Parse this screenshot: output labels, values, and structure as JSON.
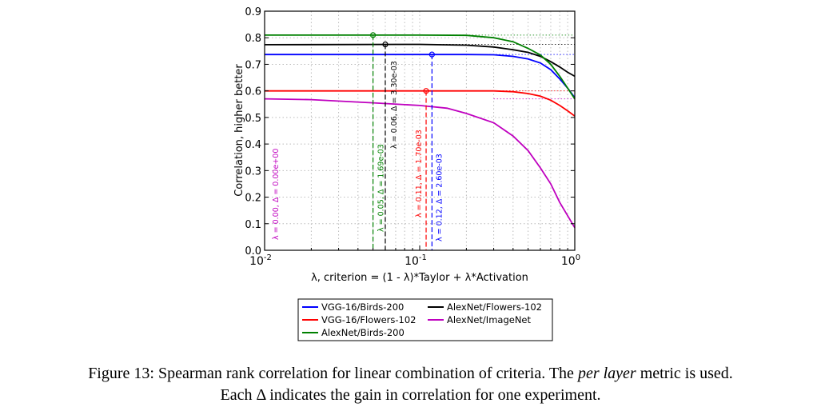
{
  "chart_data": {
    "type": "line",
    "xlabel": "λ, criterion = (1 - λ)*Taylor + λ*Activation",
    "ylabel": "Correlation, higher better",
    "xscale": "log",
    "xlim": [
      0.01,
      1
    ],
    "ylim": [
      0.0,
      0.9
    ],
    "xticks": [
      {
        "v": 0.01,
        "base": "10",
        "exp": "-2"
      },
      {
        "v": 0.1,
        "base": "10",
        "exp": "-1"
      },
      {
        "v": 1,
        "base": "10",
        "exp": "0"
      }
    ],
    "yticks": [
      "0.0",
      "0.1",
      "0.2",
      "0.3",
      "0.4",
      "0.5",
      "0.6",
      "0.7",
      "0.8",
      "0.9"
    ],
    "grid": true,
    "legend_placement": "below",
    "series": [
      {
        "name": "VGG-16/Birds-200",
        "color": "#0000ff",
        "x": [
          0.01,
          0.1,
          0.2,
          0.3,
          0.4,
          0.5,
          0.6,
          0.7,
          0.8,
          0.9,
          1.0
        ],
        "y": [
          0.737,
          0.737,
          0.737,
          0.736,
          0.73,
          0.72,
          0.705,
          0.68,
          0.645,
          0.61,
          0.575
        ],
        "best": {
          "x": 0.12,
          "y": 0.737
        },
        "annotation": "λ = 0.12, Δ = 2.60e-03"
      },
      {
        "name": "AlexNet/Flowers-102",
        "color": "#000000",
        "x": [
          0.01,
          0.1,
          0.2,
          0.3,
          0.4,
          0.5,
          0.6,
          0.7,
          0.8,
          0.9,
          1.0
        ],
        "y": [
          0.774,
          0.775,
          0.772,
          0.765,
          0.755,
          0.745,
          0.73,
          0.71,
          0.69,
          0.67,
          0.655
        ],
        "best": {
          "x": 0.06,
          "y": 0.775
        },
        "annotation": "λ = 0.06, Δ = 3.30e-03"
      },
      {
        "name": "VGG-16/Flowers-102",
        "color": "#ff0000",
        "x": [
          0.01,
          0.1,
          0.2,
          0.3,
          0.4,
          0.5,
          0.6,
          0.7,
          0.8,
          0.9,
          1.0
        ],
        "y": [
          0.6,
          0.6,
          0.6,
          0.6,
          0.597,
          0.59,
          0.58,
          0.565,
          0.545,
          0.525,
          0.505
        ],
        "best": {
          "x": 0.11,
          "y": 0.6
        },
        "annotation": "λ = 0.11, Δ = 1.70e-03"
      },
      {
        "name": "AlexNet/ImageNet",
        "color": "#bf00bf",
        "x": [
          0.01,
          0.02,
          0.05,
          0.1,
          0.15,
          0.2,
          0.3,
          0.4,
          0.5,
          0.6,
          0.7,
          0.8,
          0.9,
          1.0
        ],
        "y": [
          0.57,
          0.567,
          0.555,
          0.545,
          0.535,
          0.515,
          0.48,
          0.43,
          0.375,
          0.31,
          0.25,
          0.18,
          0.13,
          0.085
        ],
        "best": {
          "x": 0.01,
          "y": 0.57
        },
        "annotation": "λ = 0.00, Δ = 0.00e+00"
      },
      {
        "name": "AlexNet/Birds-200",
        "color": "#008000",
        "x": [
          0.01,
          0.1,
          0.2,
          0.3,
          0.4,
          0.5,
          0.6,
          0.7,
          0.8,
          0.9,
          1.0
        ],
        "y": [
          0.81,
          0.81,
          0.809,
          0.8,
          0.785,
          0.76,
          0.735,
          0.7,
          0.655,
          0.61,
          0.57
        ],
        "best": {
          "x": 0.05,
          "y": 0.81
        },
        "annotation": "λ = 0.05, Δ = 1.69e-03"
      }
    ]
  },
  "caption": {
    "line1_prefix": "Figure 13: Spearman rank correlation for linear combination of criteria. The ",
    "line1_em": "per layer",
    "line1_suffix": " metric is used.",
    "line2": "Each Δ indicates the gain in correlation for one experiment."
  }
}
